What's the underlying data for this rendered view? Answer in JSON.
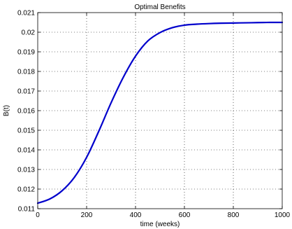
{
  "chart_data": {
    "type": "line",
    "title": "Optimal Benefits",
    "xlabel": "time (weeks)",
    "ylabel": "B(t)",
    "xlim": [
      0,
      1000
    ],
    "ylim": [
      0.011,
      0.021
    ],
    "xticks": [
      0,
      200,
      400,
      600,
      800,
      1000
    ],
    "xtick_labels": [
      "0",
      "200",
      "400",
      "600",
      "800",
      "1000"
    ],
    "yticks": [
      0.011,
      0.012,
      0.013,
      0.014,
      0.015,
      0.016,
      0.017,
      0.018,
      0.019,
      0.02,
      0.021
    ],
    "ytick_labels": [
      "0.011",
      "0.012",
      "0.013",
      "0.014",
      "0.015",
      "0.016",
      "0.017",
      "0.018",
      "0.019",
      "0.02",
      "0.021"
    ],
    "grid": true,
    "line_color": "#0000cc",
    "series": [
      {
        "x": [
          0,
          50,
          100,
          150,
          200,
          250,
          300,
          350,
          400,
          450,
          500,
          550,
          600,
          650,
          700,
          750,
          800,
          850,
          900,
          950,
          1000
        ],
        "y": [
          0.01128,
          0.0115,
          0.01192,
          0.0126,
          0.01362,
          0.01496,
          0.0164,
          0.0177,
          0.01878,
          0.01955,
          0.01998,
          0.02023,
          0.02036,
          0.02041,
          0.02044,
          0.02046,
          0.02047,
          0.02048,
          0.02049,
          0.0205,
          0.0205
        ]
      }
    ]
  }
}
